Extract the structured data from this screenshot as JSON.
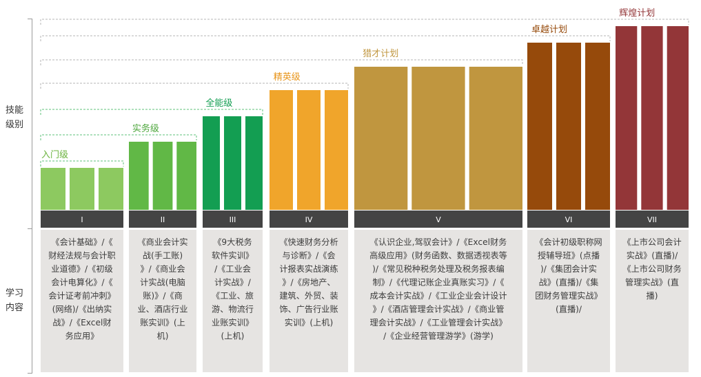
{
  "side": {
    "skill_label": "技能\n级别",
    "learn_label": "学习\n内容"
  },
  "levels": [
    {
      "roman": "I",
      "name": "入门级",
      "color": "#8dc960",
      "text_color": "#6cb33f",
      "bar_rel": 0.23,
      "content": "《会计基础》/《财经法规与会计职业道德》/《初级会计电算化》/《会计证考前冲刺》(网络)/《出纳实战》/《Excel财务应用》"
    },
    {
      "roman": "II",
      "name": "实务级",
      "color": "#61b846",
      "text_color": "#4ca63b",
      "bar_rel": 0.37,
      "content": "《商业会计实战(手工账)》/《商业会计实战(电脑账)》/《商业、酒店行业账实训》(上机)"
    },
    {
      "roman": "III",
      "name": "全能级",
      "color": "#139e52",
      "text_color": "#139e52",
      "bar_rel": 0.51,
      "content": "《9大税务软件实训》/《工业会计实战》/《工业、旅游、物流行业账实训》(上机)"
    },
    {
      "roman": "IV",
      "name": "精英级",
      "color": "#f0a52b",
      "text_color": "#e8951b",
      "bar_rel": 0.65,
      "content": "《快速财务分析与诊断》/《会计报表实战演练》/《房地产、建筑、外贸、装饰、广告行业账实训》(上机)"
    },
    {
      "roman": "V",
      "name": "猎才计划",
      "color": "#c0963f",
      "text_color": "#c0963f",
      "bar_rel": 0.78,
      "content": "《认识企业,驾驭会计》/《Excel财务高级应用》(财务函数、数据透视表等)/《常见税种税务处理及税务报表编制》/《代理记账企业真账实习》/《成本会计实战》/《工业企业会计设计》/《酒店管理会计实战》/《商业管理会计实战》/《工业管理会计实战》/《企业经营管理游学》(游学)"
    },
    {
      "roman": "VI",
      "name": "卓越计划",
      "color": "#964a0b",
      "text_color": "#964a0b",
      "bar_rel": 0.91,
      "content": "《会计初级职称网授辅导班》(点播)/《集团会计实战》(直播)/《集团财务管理实战》(直播)/"
    },
    {
      "roman": "VII",
      "name": "辉煌计划",
      "color": "#933638",
      "text_color": "#933638",
      "bar_rel": 1.0,
      "content": "《上市公司会计实战》(直播)/《上市公司财务管理实战》(直播)"
    }
  ],
  "colors": {
    "roman_bar": "#444444",
    "roman_text": "#ffffff",
    "content_bg": "#e6e4e2",
    "content_text": "#3c3c3c",
    "dashed_green": "#5cc27a",
    "dashed_gray": "#b5b5b5",
    "axis": "#9a9a9a"
  }
}
